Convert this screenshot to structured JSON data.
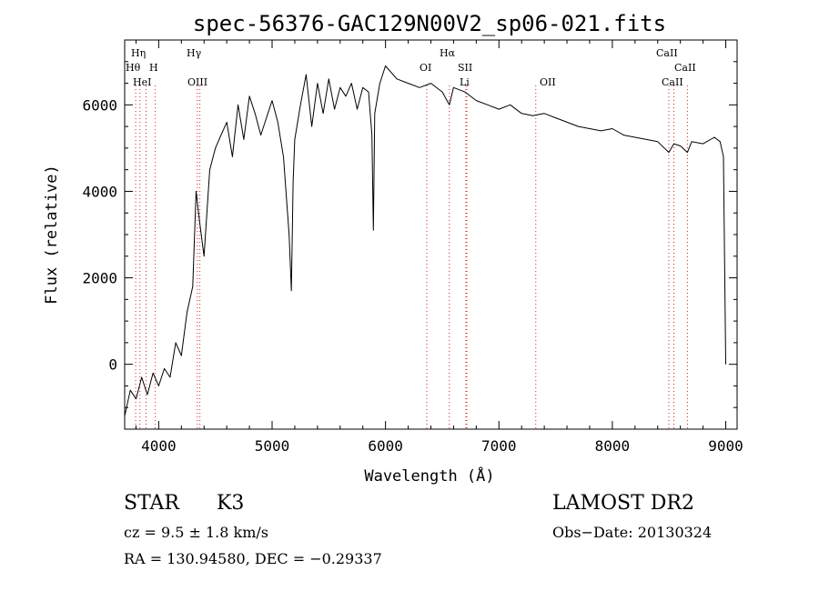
{
  "chart_data": {
    "type": "line",
    "title": "spec-56376-GAC129N00V2_sp06-021.fits",
    "xlabel": "Wavelength (Å)",
    "ylabel": "Flux (relative)",
    "xlim": [
      3700,
      9100
    ],
    "ylim": [
      -1500,
      7500
    ],
    "x_ticks": [
      4000,
      5000,
      6000,
      7000,
      8000,
      9000
    ],
    "y_ticks": [
      0,
      2000,
      4000,
      6000
    ],
    "x_tick_labels": [
      "4000",
      "5000",
      "6000",
      "7000",
      "8000",
      "9000"
    ],
    "y_tick_labels": [
      "0",
      "2000",
      "4000",
      "6000"
    ],
    "grid": false,
    "series": [
      {
        "color": "#000000",
        "x": [
          3700,
          3750,
          3800,
          3850,
          3900,
          3950,
          4000,
          4050,
          4100,
          4150,
          4200,
          4250,
          4300,
          4330,
          4360,
          4400,
          4450,
          4500,
          4550,
          4600,
          4650,
          4700,
          4750,
          4800,
          4850,
          4900,
          4950,
          5000,
          5050,
          5100,
          5150,
          5170,
          5185,
          5200,
          5250,
          5300,
          5350,
          5400,
          5450,
          5500,
          5550,
          5600,
          5650,
          5700,
          5750,
          5800,
          5850,
          5880,
          5893,
          5905,
          5950,
          6000,
          6100,
          6200,
          6300,
          6400,
          6500,
          6563,
          6600,
          6700,
          6800,
          6900,
          7000,
          7100,
          7200,
          7300,
          7400,
          7500,
          7600,
          7700,
          7800,
          7900,
          8000,
          8100,
          8200,
          8300,
          8400,
          8498,
          8542,
          8600,
          8662,
          8700,
          8800,
          8900,
          8950,
          8980,
          9000
        ],
        "y": [
          -1200,
          -600,
          -800,
          -300,
          -700,
          -200,
          -500,
          -100,
          -300,
          500,
          200,
          1200,
          1800,
          4000,
          3300,
          2500,
          4500,
          5000,
          5300,
          5600,
          4800,
          6000,
          5200,
          6200,
          5800,
          5300,
          5700,
          6100,
          5600,
          4800,
          3000,
          1700,
          4200,
          5200,
          6000,
          6700,
          5500,
          6500,
          5800,
          6600,
          5900,
          6400,
          6200,
          6500,
          5900,
          6400,
          6300,
          5300,
          3100,
          5800,
          6500,
          6900,
          6600,
          6500,
          6400,
          6500,
          6300,
          6000,
          6400,
          6300,
          6100,
          6000,
          5900,
          6000,
          5800,
          5750,
          5800,
          5700,
          5600,
          5500,
          5450,
          5400,
          5450,
          5300,
          5250,
          5200,
          5150,
          4900,
          5100,
          5050,
          4900,
          5150,
          5100,
          5250,
          5150,
          4800,
          0
        ]
      }
    ],
    "lines": [
      {
        "label": "Hη",
        "x": 3835
      },
      {
        "label": "Hθ",
        "x": 3797
      },
      {
        "label": "HeI",
        "x": 3889
      },
      {
        "label": "H",
        "x": 3970
      },
      {
        "label": "Hγ",
        "x": 4341
      },
      {
        "label": "OIII",
        "x": 4363
      },
      {
        "label": "OI",
        "x": 6364
      },
      {
        "label": "Hα",
        "x": 6563
      },
      {
        "label": "SII",
        "x": 6717
      },
      {
        "label": "Li",
        "x": 6708
      },
      {
        "label": "OII",
        "x": 7325
      },
      {
        "label": "CaII",
        "x": 8498
      },
      {
        "label": "CaII",
        "x": 8542
      },
      {
        "label": "CaII",
        "x": 8662
      }
    ]
  },
  "info": {
    "object_class": "STAR",
    "subclass": "K3",
    "survey": "LAMOST DR2",
    "velocity": "cz = 9.5 ± 1.8 km/s",
    "obs_date": "Obs−Date: 20130324",
    "coords": "RA = 130.94580, DEC =  −0.29337"
  }
}
